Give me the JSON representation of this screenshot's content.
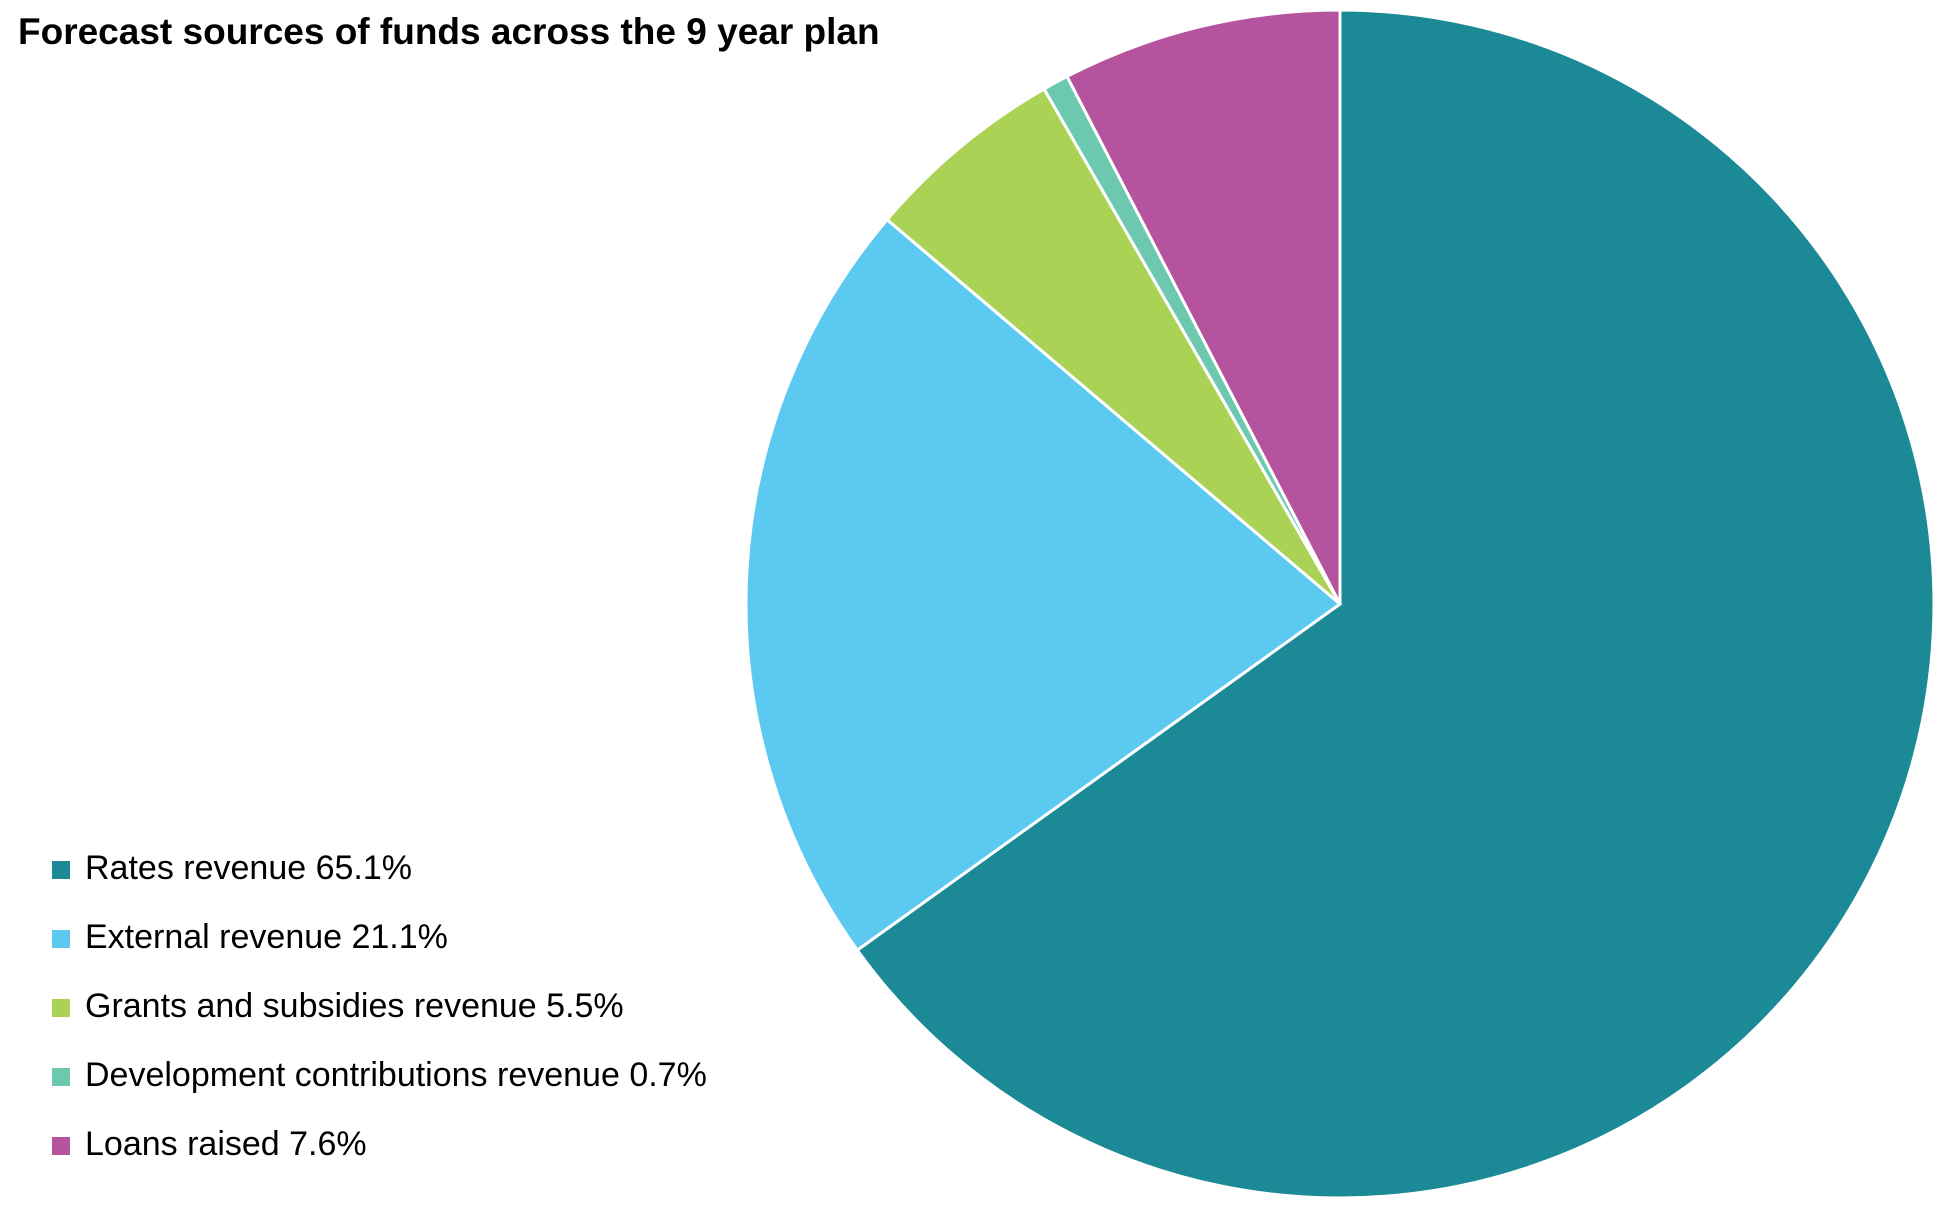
{
  "chart_data": {
    "type": "pie",
    "title": "Forecast sources of funds across the 9 year plan",
    "categories": [
      "Rates revenue 65.1%",
      "External revenue 21.1%",
      "Grants and subsidies revenue 5.5%",
      "Development contributions revenue 0.7%",
      "Loans raised 7.6%"
    ],
    "values": [
      65.1,
      21.1,
      5.5,
      0.7,
      7.6
    ],
    "colors": [
      "#1b8a96",
      "#5bc9f0",
      "#aad356",
      "#6cc9b0",
      "#b5539f"
    ],
    "legend": "bottom-left"
  }
}
